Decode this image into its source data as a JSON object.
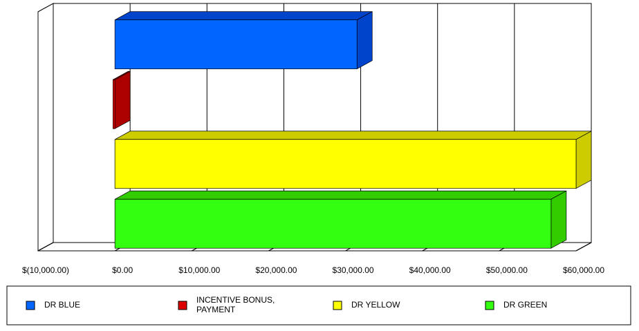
{
  "chart_data": {
    "type": "bar3d",
    "series": [
      {
        "name": "DR BLUE",
        "color": "#0066ff",
        "side": "#0044cc",
        "values": [
          31500
        ]
      },
      {
        "name": "INCENTIVE BONUS, PAYMENT",
        "color": "#dd0000",
        "side": "#aa0000",
        "values": [
          -250
        ]
      },
      {
        "name": "DR YELLOW",
        "color": "#ffff00",
        "side": "#cccc00",
        "values": [
          60000
        ]
      },
      {
        "name": "DR GREEN",
        "color": "#33ff11",
        "side": "#33cc00",
        "values": [
          56750
        ]
      }
    ],
    "xlim": [
      -10000,
      60000
    ],
    "xticks": [
      {
        "value": -10000,
        "label": "$(10,000.00)"
      },
      {
        "value": 0,
        "label": "$0.00"
      },
      {
        "value": 10000,
        "label": "$10,000.00"
      },
      {
        "value": 20000,
        "label": "$20,000.00"
      },
      {
        "value": 30000,
        "label": "$30,000.00"
      },
      {
        "value": 40000,
        "label": "$40,000.00"
      },
      {
        "value": 50000,
        "label": "$50,000.00"
      },
      {
        "value": 60000,
        "label": "$60,000.00"
      }
    ],
    "grid": true
  }
}
